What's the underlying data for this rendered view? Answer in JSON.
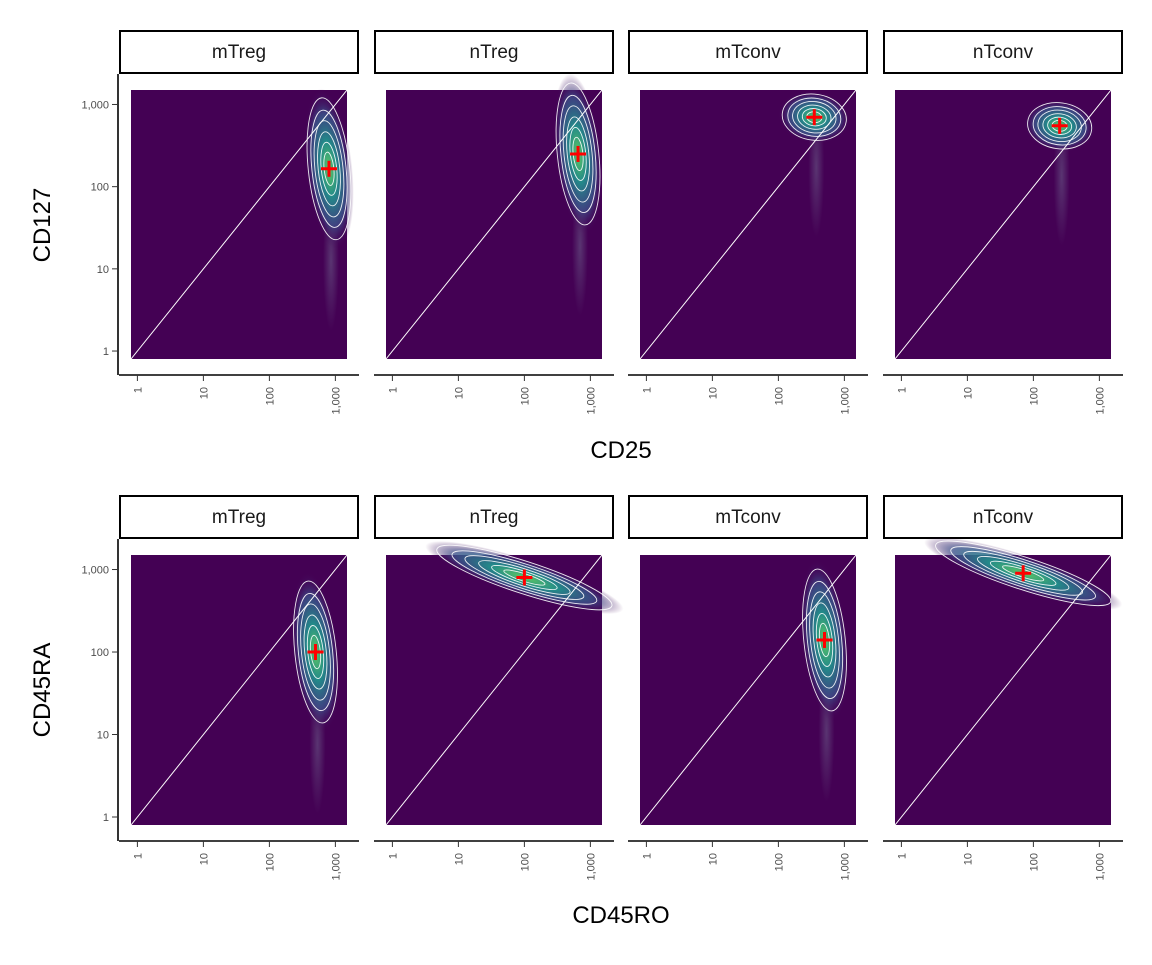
{
  "chart_data": [
    {
      "type": "heatmap",
      "xlabel": "CD25",
      "ylabel": "CD127",
      "x_scale": "log10",
      "y_scale": "log10",
      "xlim": [
        0.8,
        1500
      ],
      "ylim": [
        0.8,
        1500
      ],
      "x_ticks": [
        "1",
        "10",
        "100",
        "1,000"
      ],
      "y_ticks": [
        "1",
        "10",
        "100",
        "1,000"
      ],
      "reference_line": "y = x",
      "marker": "red cross at density center",
      "colors": {
        "background": "#440154",
        "contour": "#ffffff",
        "marker": "#ff0000"
      },
      "panels": [
        {
          "label": "mTreg",
          "center": {
            "x": 800,
            "y": 165
          }
        },
        {
          "label": "nTreg",
          "center": {
            "x": 650,
            "y": 250
          }
        },
        {
          "label": "mTconv",
          "center": {
            "x": 350,
            "y": 700
          }
        },
        {
          "label": "nTconv",
          "center": {
            "x": 250,
            "y": 550
          }
        }
      ]
    },
    {
      "type": "heatmap",
      "xlabel": "CD45RO",
      "ylabel": "CD45RA",
      "x_scale": "log10",
      "y_scale": "log10",
      "xlim": [
        0.8,
        1500
      ],
      "ylim": [
        0.8,
        1500
      ],
      "x_ticks": [
        "1",
        "10",
        "100",
        "1,000"
      ],
      "y_ticks": [
        "1",
        "10",
        "100",
        "1,000"
      ],
      "reference_line": "y = x",
      "marker": "red cross at density center",
      "colors": {
        "background": "#440154",
        "contour": "#ffffff",
        "marker": "#ff0000"
      },
      "panels": [
        {
          "label": "mTreg",
          "center": {
            "x": 500,
            "y": 100
          }
        },
        {
          "label": "nTreg",
          "center": {
            "x": 100,
            "y": 800
          }
        },
        {
          "label": "mTconv",
          "center": {
            "x": 500,
            "y": 140
          }
        },
        {
          "label": "nTconv",
          "center": {
            "x": 70,
            "y": 900
          }
        }
      ]
    }
  ]
}
